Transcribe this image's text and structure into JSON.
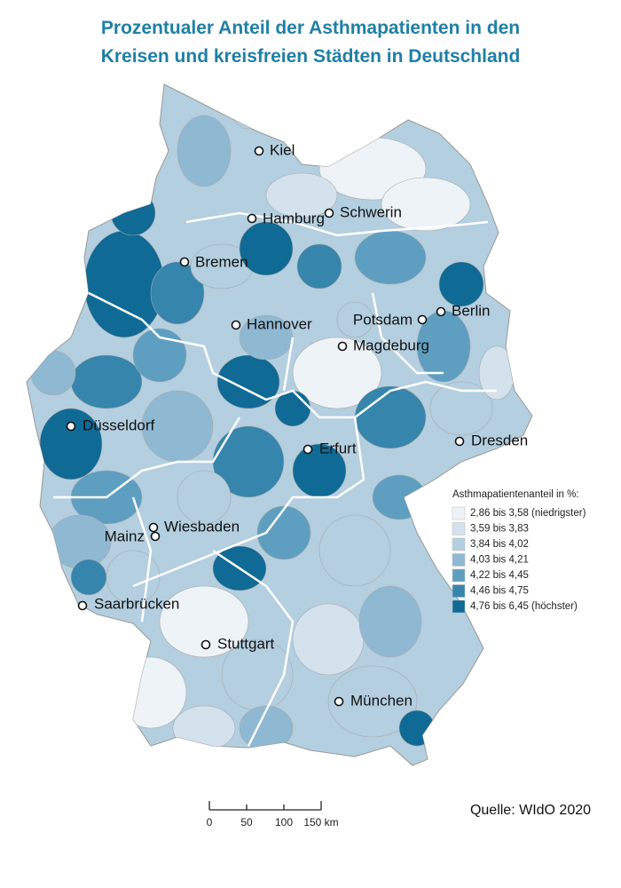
{
  "header": {
    "title_lines": [
      "Prozentualer Anteil der Asthmapatienten in den",
      "Kreisen und kreisfreien Städten in Deutschland"
    ]
  },
  "map": {
    "cities": [
      "Kiel",
      "Hamburg",
      "Schwerin",
      "Bremen",
      "Hannover",
      "Potsdam",
      "Berlin",
      "Magdeburg",
      "Düsseldorf",
      "Erfurt",
      "Dresden",
      "Wiesbaden",
      "Mainz",
      "Saarbrücken",
      "Stuttgart",
      "München"
    ],
    "legend": {
      "title": "Asthmapatientenanteil in %:",
      "items": [
        {
          "label": "2,86 bis 3,58 (niedrigster)",
          "color": "#eef3f8"
        },
        {
          "label": "3,59 bis 3,83",
          "color": "#d4e2ee"
        },
        {
          "label": "3,84 bis 4,02",
          "color": "#b3cfe0"
        },
        {
          "label": "4,03 bis 4,21",
          "color": "#8fb8d2"
        },
        {
          "label": "4,22 bis 4,45",
          "color": "#5e9fc1"
        },
        {
          "label": "4,46 bis 4,75",
          "color": "#3685ac"
        },
        {
          "label": "4,76 bis 6,45 (höchster)",
          "color": "#0f6a96"
        }
      ]
    },
    "scale_bar": {
      "labels": [
        "0",
        "50",
        "100",
        "150 km"
      ]
    },
    "source": "Quelle: WIdO 2020"
  }
}
